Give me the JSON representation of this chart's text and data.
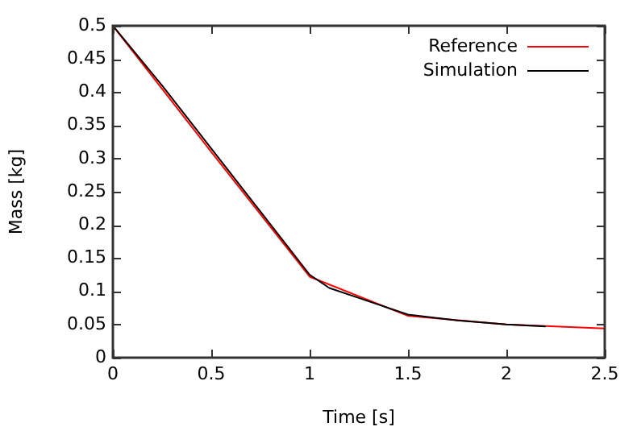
{
  "chart_data": {
    "type": "line",
    "xlabel": "Time [s]",
    "ylabel": "Mass [kg]",
    "xlim": [
      0,
      2.5
    ],
    "xticks": [
      0,
      0.5,
      1,
      1.5,
      2,
      2.5
    ],
    "ylim": [
      0,
      0.5
    ],
    "yticks": [
      0,
      0.05,
      0.1,
      0.15,
      0.2,
      0.25,
      0.3,
      0.35,
      0.4,
      0.45,
      0.5
    ],
    "grid": false,
    "legend": "top right",
    "marker": "none",
    "line_style": "solid",
    "series": [
      {
        "name": "Reference",
        "color": "#ff0000",
        "x": [
          0,
          0.5,
          1,
          1.5,
          2,
          2.5
        ],
        "values": [
          0.5,
          0.31,
          0.122,
          0.063,
          0.05,
          0.044
        ]
      },
      {
        "name": "Simulation",
        "color": "#000000",
        "x": [
          0,
          0.25,
          0.5,
          0.75,
          1,
          1.1,
          1.25,
          1.5,
          1.75,
          2,
          2.2
        ],
        "values": [
          0.5,
          0.41,
          0.315,
          0.22,
          0.125,
          0.105,
          0.09,
          0.065,
          0.056,
          0.05,
          0.047
        ]
      }
    ]
  }
}
